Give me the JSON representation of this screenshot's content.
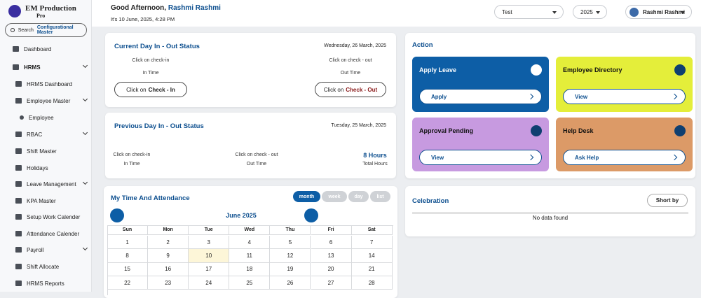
{
  "sidebar": {
    "brand": "EM Production",
    "brand_sub": "Pro",
    "search_label": "Search",
    "search_value": "Configurational Master",
    "menu": [
      "Dashboard",
      "HRMS",
      "HRMS Dashboard",
      "Employee Master",
      "Employee",
      "RBAC",
      "Shift Master",
      "Holidays",
      "Leave Management",
      "KPA Master",
      "Setup Work Calender",
      "Attendance Calender",
      "Payroll",
      "Shift Allocate",
      "HRMS Reports"
    ]
  },
  "header": {
    "greeting": "Good Afternoon,",
    "user_name": "Rashmi Rashmi",
    "datetime": "It's 10 June, 2025, 4:28 PM",
    "company_select": "Test",
    "year_select": "2025",
    "profile_name": "Rashmi Rashmi"
  },
  "current_day": {
    "title": "Current Day In - Out Status",
    "date": "Wednesday, 26 March, 2025",
    "in_hint": "Click on check-in",
    "in_label": "In Time",
    "out_hint": "Click on check - out",
    "out_label": "Out Time",
    "in_button_prefix": "Click on",
    "in_button_action": "Check - In",
    "out_button_prefix": "Click on",
    "out_button_action": "Check - Out"
  },
  "previous_day": {
    "title": "Previous Day In - Out Status",
    "date": "Tuesday, 25 March, 2025",
    "in_hint": "Click on check-in",
    "in_label": "In Time",
    "out_hint": "Click on check - out",
    "out_label": "Out Time",
    "total_value": "8 Hours",
    "total_label": "Total Hours"
  },
  "calendar": {
    "title": "My Time And Attendance",
    "views": [
      "month",
      "week",
      "day",
      "list"
    ],
    "month_label": "June 2025",
    "weekdays": [
      "Sun",
      "Mon",
      "Tue",
      "Wed",
      "Thu",
      "Fri",
      "Sat"
    ],
    "weeks": [
      [
        1,
        2,
        3,
        4,
        5,
        6,
        7
      ],
      [
        8,
        9,
        10,
        11,
        12,
        13,
        14
      ],
      [
        15,
        16,
        17,
        18,
        19,
        20,
        21
      ],
      [
        22,
        23,
        24,
        25,
        26,
        27,
        28
      ]
    ]
  },
  "action": {
    "title": "Action",
    "cards": [
      {
        "title": "Apply Leave",
        "button": "Apply"
      },
      {
        "title": "Employee Directory",
        "button": "View"
      },
      {
        "title": "Approval Pending",
        "button": "View"
      },
      {
        "title": "Help Desk",
        "button": "Ask Help"
      }
    ]
  },
  "celebration": {
    "title": "Celebration",
    "sort_button": "Short by",
    "empty": "No data found"
  }
}
